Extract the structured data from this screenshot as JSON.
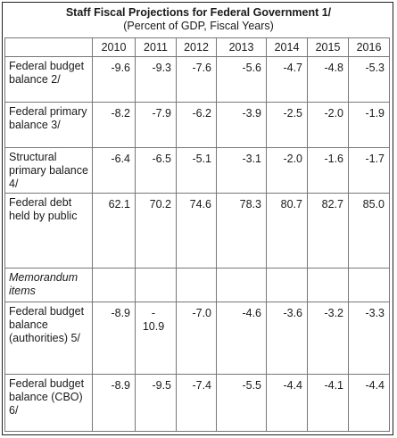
{
  "title": "Staff Fiscal Projections for Federal Government 1/",
  "subtitle": "(Percent of GDP, Fiscal Years)",
  "years": [
    "2010",
    "2011",
    "2012",
    "2013",
    "2014",
    "2015",
    "2016"
  ],
  "rows": [
    {
      "label": "Federal budget balance 2/",
      "values": [
        "-9.6",
        "-9.3",
        "-7.6",
        "-5.6",
        "-4.7",
        "-4.8",
        "-5.3"
      ]
    },
    {
      "label": "Federal primary balance 3/",
      "values": [
        "-8.2",
        "-7.9",
        "-6.2",
        "-3.9",
        "-2.5",
        "-2.0",
        "-1.9"
      ]
    },
    {
      "label": "Structural primary balance 4/",
      "values": [
        "-6.4",
        "-6.5",
        "-5.1",
        "-3.1",
        "-2.0",
        "-1.6",
        "-1.7"
      ]
    },
    {
      "label": "Federal debt held by public",
      "values": [
        "62.1",
        "70.2",
        "74.6",
        "78.3",
        "80.7",
        "82.7",
        "85.0"
      ]
    }
  ],
  "memo_label": "Memorandum items",
  "memo_rows": [
    {
      "label": "Federal budget balance (authorities) 5/",
      "values": [
        "-8.9",
        "-",
        "-7.0",
        "-4.6",
        "-3.6",
        "-3.2",
        "-3.3"
      ],
      "value_2011_second_line": "10.9"
    },
    {
      "label": "Federal budget balance (CBO) 6/",
      "values": [
        "-8.9",
        "-9.5",
        "-7.4",
        "-5.5",
        "-4.4",
        "-4.1",
        "-4.4"
      ]
    }
  ]
}
